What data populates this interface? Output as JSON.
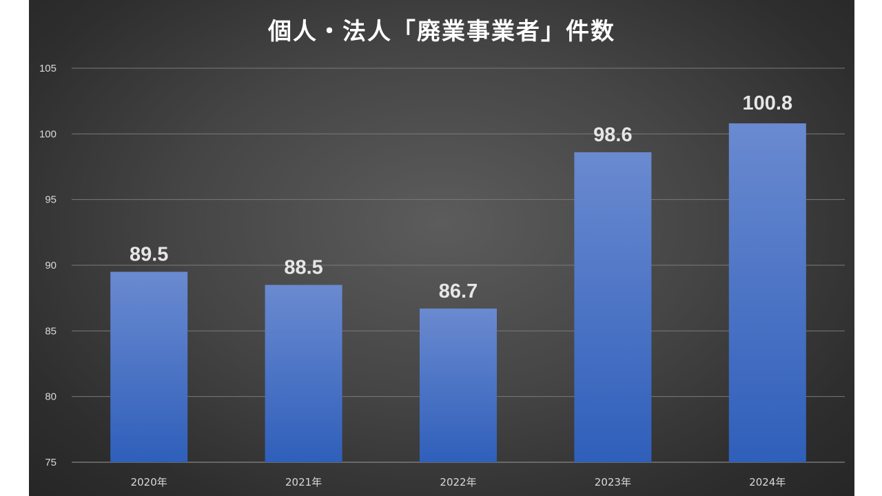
{
  "chart_data": {
    "type": "bar",
    "title": "個人・法人「廃業事業者」件数",
    "categories": [
      "2020年",
      "2021年",
      "2022年",
      "2023年",
      "2024年"
    ],
    "values": [
      89.5,
      88.5,
      86.7,
      98.6,
      100.8
    ],
    "data_labels": [
      "89.5",
      "88.5",
      "86.7",
      "98.6",
      "100.8"
    ],
    "ylim": [
      75,
      105
    ],
    "yticks": [
      "75",
      "80",
      "85",
      "90",
      "95",
      "100",
      "105"
    ],
    "grid": true,
    "legend": "none",
    "colors": {
      "bar_top": "#6a8ad0",
      "bar_bottom": "#2f5fba",
      "label": "#e6e6e6",
      "highlight_label": "#ff1a1a",
      "gridline": "#7a7a7a"
    },
    "highlight_index": 4
  }
}
